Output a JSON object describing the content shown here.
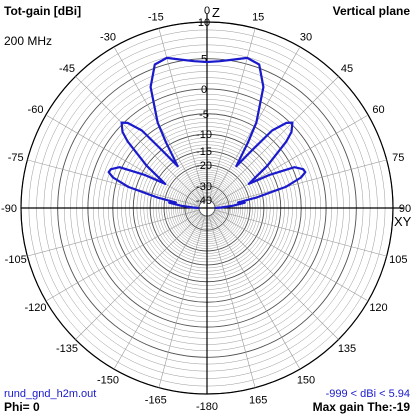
{
  "header": {
    "title": "Tot-gain [dBi]",
    "plane": "Vertical plane",
    "frequency": "200 MHz"
  },
  "footer": {
    "filename": "rund_gnd_h2m.out",
    "range_text": "-999 < dBi < 5.94",
    "phi": "Phi= 0",
    "max_gain": "Max gain The:-19"
  },
  "axis_labels": {
    "top": "Z",
    "right": "XY"
  },
  "colors": {
    "pattern": "#1a1acc",
    "grid": "#9a9a9a",
    "axes": "#000000"
  },
  "chart_data": {
    "type": "polar",
    "angle_unit": "deg",
    "angle_ticks": [
      0,
      15,
      30,
      45,
      60,
      75,
      90,
      105,
      120,
      135,
      150,
      165,
      -180,
      -165,
      -150,
      -135,
      -120,
      -105,
      -90,
      -75,
      -60,
      -45,
      -30,
      -15
    ],
    "radial_ticks": [
      10,
      5,
      0,
      -5,
      -10,
      -15,
      -20,
      -30,
      -40
    ],
    "radial_range_dbi": [
      -40,
      10
    ],
    "series": [
      {
        "theta": [
          0,
          5,
          10,
          15,
          20,
          25,
          30,
          32,
          35,
          38,
          40,
          43,
          45,
          48,
          50,
          55,
          60,
          62,
          65,
          68,
          70,
          72,
          75,
          78,
          80,
          82,
          85,
          88,
          90
        ],
        "gain": [
          4.5,
          4.7,
          5.2,
          5.9,
          5.5,
          2.5,
          -4,
          -9,
          -17,
          -10,
          -3.5,
          -0.5,
          0.3,
          -1,
          -3,
          -10,
          -18,
          -11,
          -4.5,
          -3,
          -2.8,
          -4,
          -8,
          -17,
          -25,
          -22,
          -28,
          -35,
          -40
        ]
      }
    ]
  }
}
